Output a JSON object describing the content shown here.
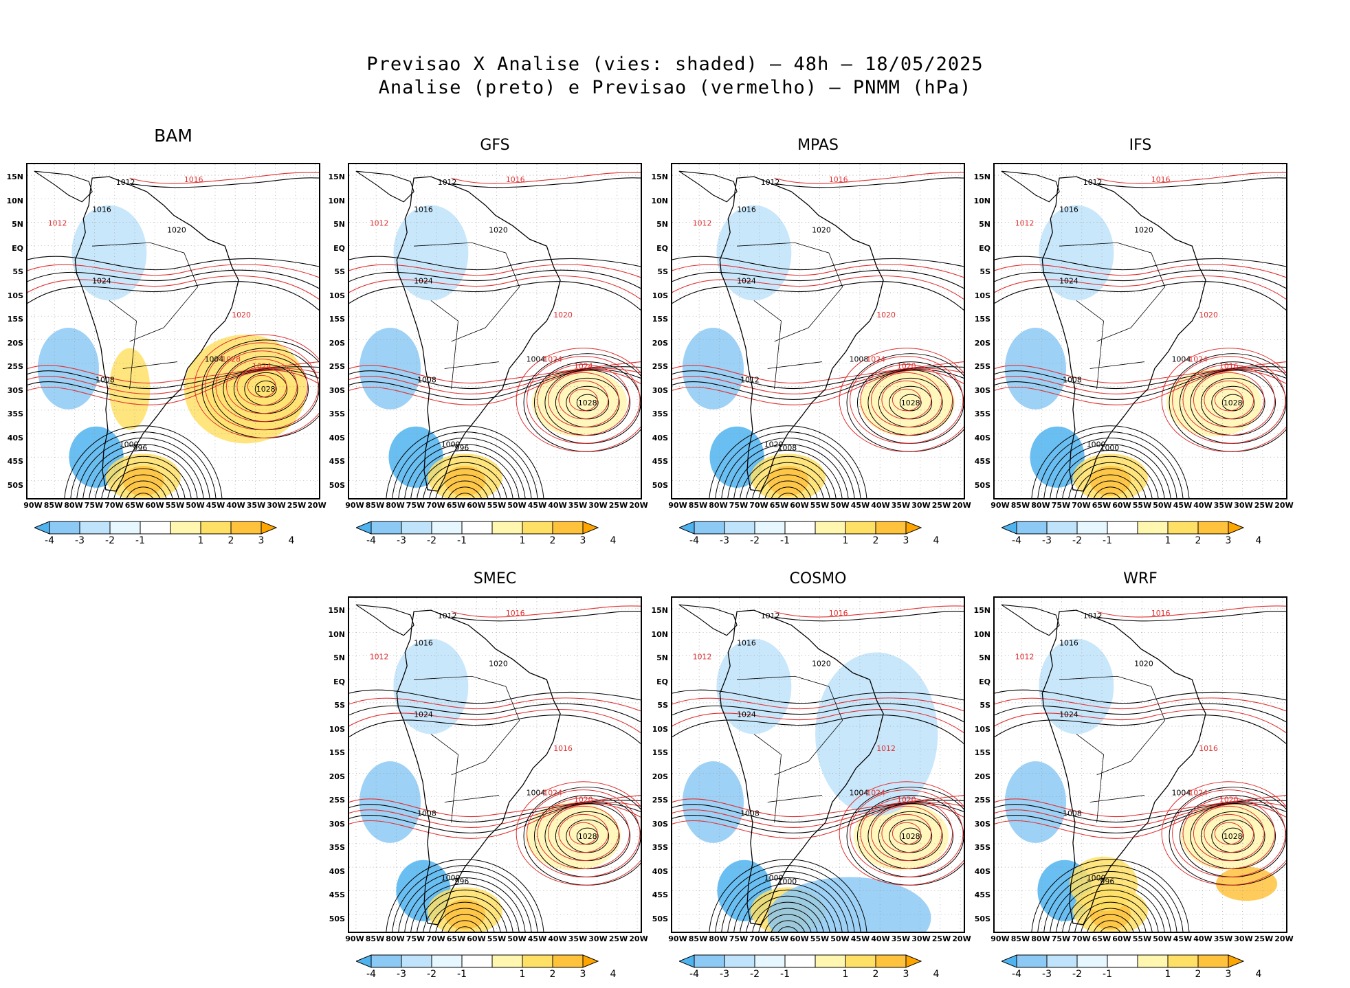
{
  "header": {
    "title_line1": "Previsao X Analise (vies: shaded) – 48h – 18/05/2025",
    "title_line2": "Analise (preto) e Previsao (vermelho) – PNMM (hPa)"
  },
  "axes": {
    "lat_labels": [
      "15N",
      "10N",
      "5N",
      "EQ",
      "5S",
      "10S",
      "15S",
      "20S",
      "25S",
      "30S",
      "35S",
      "40S",
      "45S",
      "50S"
    ],
    "lon_labels": [
      "90W",
      "85W",
      "80W",
      "75W",
      "70W",
      "65W",
      "60W",
      "55W",
      "50W",
      "45W",
      "40W",
      "35W",
      "30W",
      "25W",
      "20W"
    ]
  },
  "colorbar": {
    "ticks": [
      "-4",
      "-3",
      "-2",
      "-1",
      "1",
      "2",
      "3",
      "4"
    ],
    "colors": [
      "#4fb3f0",
      "#8cc9f5",
      "#bfe3fa",
      "#e6f7ff",
      "#ffffff",
      "#fff6b0",
      "#ffe066",
      "#ffc23d",
      "#ffa500"
    ]
  },
  "analysis_color": "#000000",
  "forecast_color": "#e03030",
  "panels": [
    {
      "id": "bam",
      "name": "BAM",
      "high": "1028",
      "highF": "1028",
      "low": "996",
      "labelsA": [
        "1012",
        "1016",
        "1020",
        "1024",
        "1004",
        "1008",
        "1000"
      ],
      "labelsF": [
        "1016",
        "1012",
        "1024",
        "1020"
      ]
    },
    {
      "id": "gfs",
      "name": "GFS",
      "high": "1028",
      "highF": "1024",
      "low": "996",
      "labelsA": [
        "1012",
        "1016",
        "1020",
        "1024",
        "1004",
        "1008",
        "1000"
      ],
      "labelsF": [
        "1016",
        "1012",
        "1024",
        "1020"
      ]
    },
    {
      "id": "mpas",
      "name": "MPAS",
      "high": "1028",
      "highF": "1024",
      "low": "1008",
      "labelsA": [
        "1012",
        "1016",
        "1020",
        "1024",
        "1008",
        "1012",
        "1020"
      ],
      "labelsF": [
        "1016",
        "1012",
        "1020",
        "1020"
      ]
    },
    {
      "id": "ifs",
      "name": "IFS",
      "high": "1028",
      "highF": "1024",
      "low": "1000",
      "labelsA": [
        "1012",
        "1016",
        "1020",
        "1024",
        "1004",
        "1008",
        "1000"
      ],
      "labelsF": [
        "1016",
        "1012",
        "1016",
        "1020"
      ]
    },
    {
      "id": "smec",
      "name": "SMEC",
      "high": "1028",
      "highF": "1024",
      "low": "996",
      "labelsA": [
        "1012",
        "1016",
        "1020",
        "1024",
        "1004",
        "1008",
        "1000"
      ],
      "labelsF": [
        "1016",
        "1012",
        "1020",
        "1016"
      ]
    },
    {
      "id": "cosmo",
      "name": "COSMO",
      "high": "1028",
      "highF": "1024",
      "low": "1000",
      "labelsA": [
        "1012",
        "1016",
        "1020",
        "1024",
        "1004",
        "1008",
        "1000"
      ],
      "labelsF": [
        "1016",
        "1012",
        "1020",
        "1012"
      ]
    },
    {
      "id": "wrf",
      "name": "WRF",
      "high": "1028",
      "highF": "1024",
      "low": "996",
      "labelsA": [
        "1012",
        "1016",
        "1020",
        "1024",
        "1004",
        "1008",
        "1000"
      ],
      "labelsF": [
        "1016",
        "1012",
        "1020",
        "1016"
      ]
    }
  ]
}
